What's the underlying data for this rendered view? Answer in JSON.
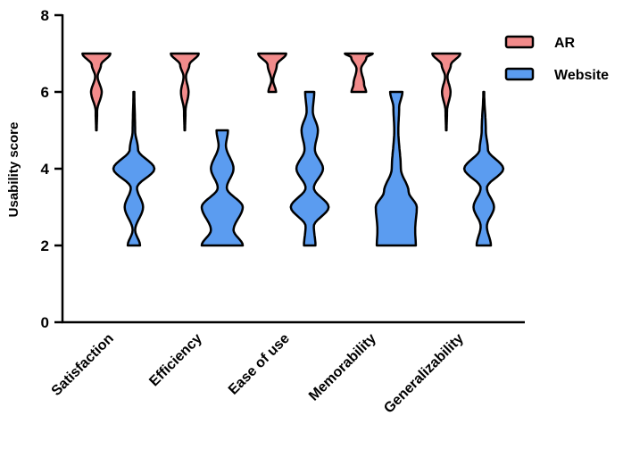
{
  "chart_data": {
    "type": "violin",
    "title": "",
    "xlabel": "",
    "ylabel": "Usability score",
    "ylim": [
      0,
      8
    ],
    "yticks": [
      0,
      2,
      4,
      6,
      8
    ],
    "categories": [
      "Satisfaction",
      "Efficiency",
      "Ease of use",
      "Memorability",
      "Generalizability"
    ],
    "legend_position": "top-right",
    "series": [
      {
        "name": "AR",
        "color": "#f28b8b",
        "violins": [
          {
            "min": 5,
            "max": 7,
            "profile": [
              [
                5,
                0.02
              ],
              [
                5.5,
                0.05
              ],
              [
                6,
                0.35
              ],
              [
                6.4,
                0.08
              ],
              [
                6.7,
                0.3
              ],
              [
                7,
                0.92
              ]
            ]
          },
          {
            "min": 5,
            "max": 7,
            "profile": [
              [
                5,
                0.02
              ],
              [
                5.5,
                0.05
              ],
              [
                6,
                0.25
              ],
              [
                6.4,
                0.08
              ],
              [
                6.7,
                0.3
              ],
              [
                7,
                0.92
              ]
            ]
          },
          {
            "min": 6,
            "max": 7,
            "profile": [
              [
                6,
                0.25
              ],
              [
                6.3,
                0.06
              ],
              [
                6.7,
                0.3
              ],
              [
                7,
                0.92
              ]
            ]
          },
          {
            "min": 6,
            "max": 7,
            "profile": [
              [
                6,
                0.48
              ],
              [
                6.2,
                0.35
              ],
              [
                6.6,
                0.15
              ],
              [
                6.9,
                0.5
              ],
              [
                7,
                0.92
              ]
            ]
          },
          {
            "min": 5,
            "max": 7,
            "profile": [
              [
                5,
                0.02
              ],
              [
                5.5,
                0.05
              ],
              [
                6,
                0.28
              ],
              [
                6.4,
                0.08
              ],
              [
                6.7,
                0.3
              ],
              [
                7,
                0.92
              ]
            ]
          }
        ]
      },
      {
        "name": "Website",
        "color": "#5b9cf0",
        "violins": [
          {
            "min": 2,
            "max": 6,
            "profile": [
              [
                2,
                0.3
              ],
              [
                2.4,
                0.06
              ],
              [
                3,
                0.45
              ],
              [
                3.5,
                0.15
              ],
              [
                4,
                1.0
              ],
              [
                4.5,
                0.2
              ],
              [
                5,
                0.06
              ],
              [
                6,
                0.02
              ]
            ]
          },
          {
            "min": 2,
            "max": 5,
            "profile": [
              [
                2,
                1.0
              ],
              [
                2.4,
                0.55
              ],
              [
                3,
                1.0
              ],
              [
                3.5,
                0.22
              ],
              [
                4,
                0.55
              ],
              [
                4.6,
                0.18
              ],
              [
                5,
                0.28
              ]
            ]
          },
          {
            "min": 2,
            "max": 6,
            "profile": [
              [
                2,
                0.28
              ],
              [
                2.5,
                0.2
              ],
              [
                3,
                0.92
              ],
              [
                3.5,
                0.2
              ],
              [
                4,
                0.65
              ],
              [
                4.5,
                0.25
              ],
              [
                5,
                0.4
              ],
              [
                5.5,
                0.15
              ],
              [
                6,
                0.22
              ]
            ]
          },
          {
            "min": 2,
            "max": 6,
            "profile": [
              [
                2,
                0.95
              ],
              [
                2.4,
                0.92
              ],
              [
                3,
                1.0
              ],
              [
                3.4,
                0.6
              ],
              [
                4,
                0.22
              ],
              [
                5,
                0.1
              ],
              [
                5.6,
                0.14
              ],
              [
                6,
                0.3
              ]
            ]
          },
          {
            "min": 2,
            "max": 6,
            "profile": [
              [
                2,
                0.35
              ],
              [
                2.5,
                0.15
              ],
              [
                3,
                0.5
              ],
              [
                3.5,
                0.15
              ],
              [
                4,
                0.95
              ],
              [
                4.5,
                0.2
              ],
              [
                5,
                0.1
              ],
              [
                6,
                0.02
              ]
            ]
          }
        ]
      }
    ]
  }
}
